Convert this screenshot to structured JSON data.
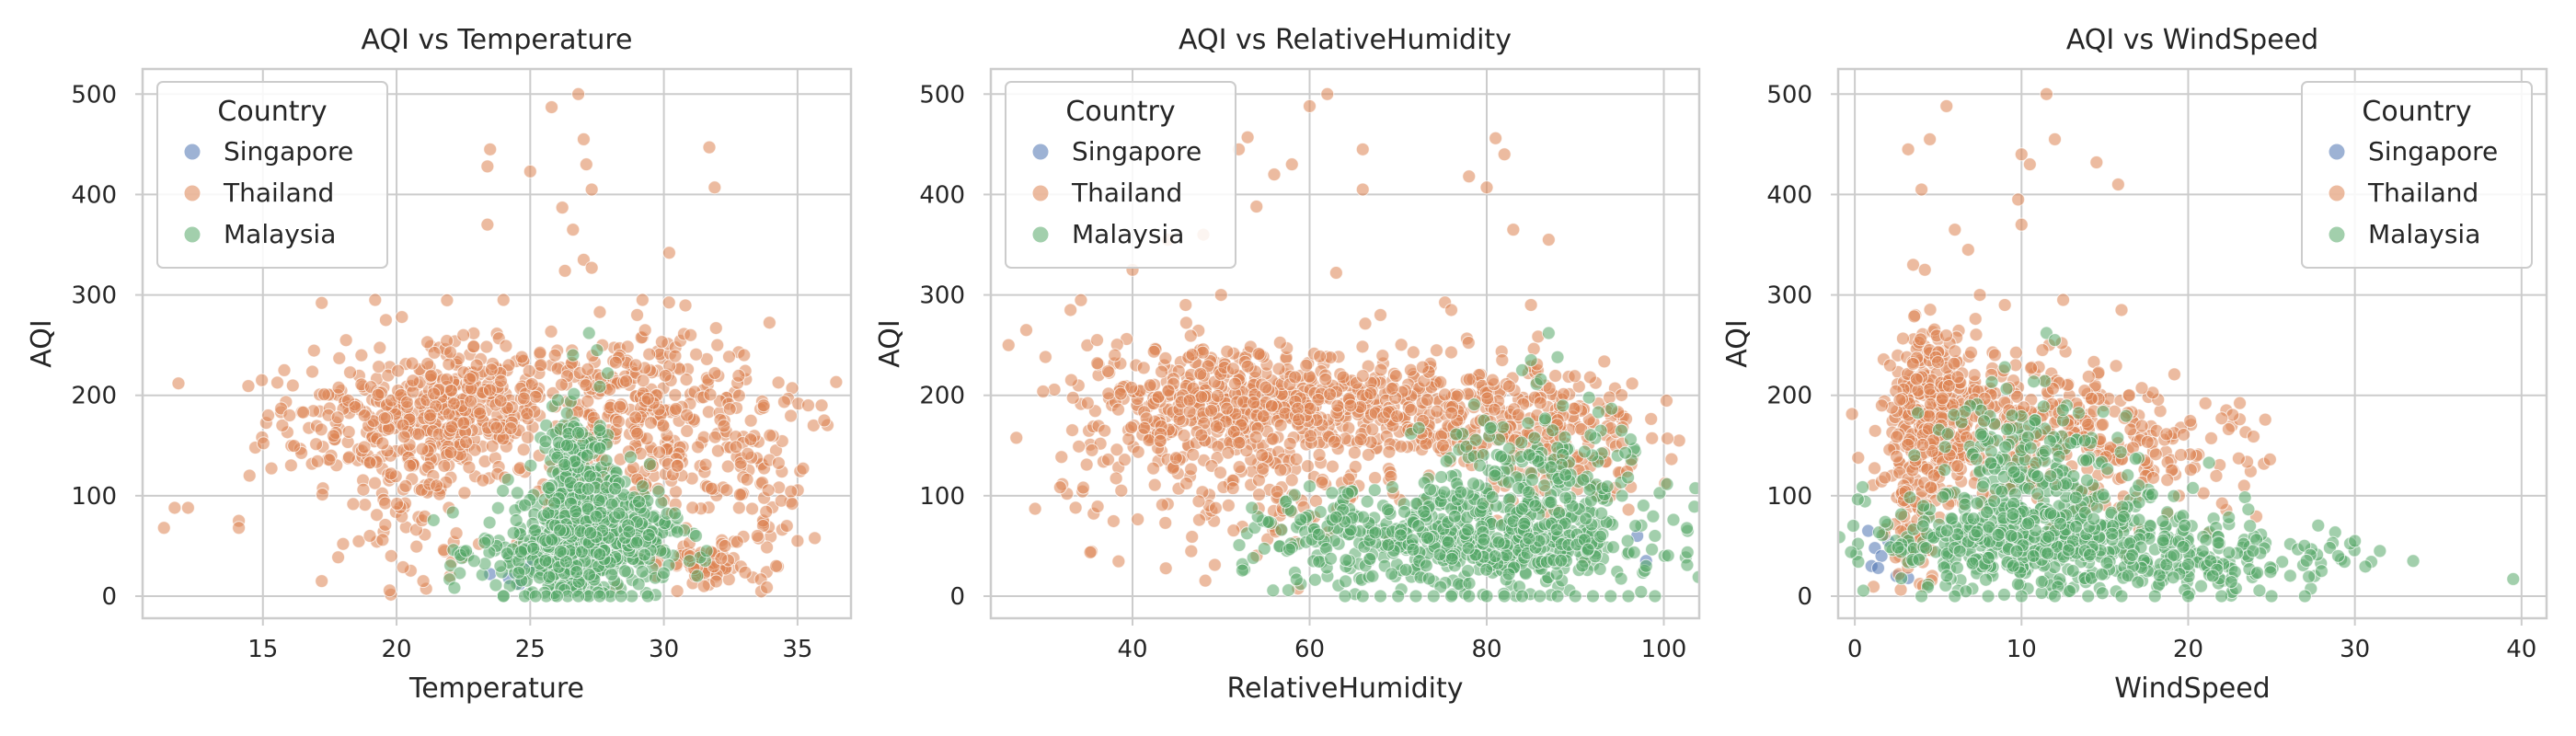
{
  "chart_data": [
    {
      "type": "scatter",
      "title": "AQI vs Temperature",
      "xlabel": "Temperature",
      "ylabel": "AQI",
      "xlim": [
        10.5,
        37
      ],
      "ylim": [
        -22,
        525
      ],
      "xticks": [
        15,
        20,
        25,
        30,
        35
      ],
      "yticks": [
        0,
        100,
        200,
        300,
        400,
        500
      ],
      "grid": true,
      "legend": {
        "title": "Country",
        "position": "upper-left",
        "entries": [
          "Singapore",
          "Thailand",
          "Malaysia"
        ]
      },
      "series": [
        {
          "name": "Singapore",
          "color": "#4c72b0",
          "points": [
            [
              23.5,
              22
            ],
            [
              24.2,
              18
            ],
            [
              25.0,
              30
            ],
            [
              24.6,
              12
            ]
          ]
        },
        {
          "name": "Thailand",
          "color": "#dd8452",
          "points": [
            [
              11.3,
              68
            ],
            [
              11.7,
              88
            ],
            [
              12.2,
              88
            ],
            [
              14.1,
              75
            ],
            [
              14.1,
              68
            ],
            [
              14.5,
              120
            ],
            [
              15.2,
              180
            ],
            [
              15.8,
              225
            ],
            [
              16.0,
              180
            ],
            [
              17.2,
              292
            ],
            [
              17.8,
              178
            ],
            [
              18.8,
              180
            ],
            [
              19.2,
              295
            ],
            [
              19.6,
              275
            ],
            [
              20.2,
              278
            ],
            [
              17.2,
              15
            ],
            [
              18.0,
              52
            ],
            [
              19.0,
              60
            ],
            [
              19.8,
              40
            ],
            [
              20.5,
              130
            ],
            [
              21.5,
              110
            ],
            [
              22.5,
              260
            ],
            [
              23.0,
              230
            ],
            [
              23.4,
              428
            ],
            [
              23.5,
              445
            ],
            [
              23.4,
              370
            ],
            [
              24.0,
              295
            ],
            [
              25.0,
              423
            ],
            [
              25.8,
              487
            ],
            [
              26.3,
              324
            ],
            [
              26.2,
              387
            ],
            [
              26.6,
              365
            ],
            [
              26.8,
              500
            ],
            [
              27.0,
              455
            ],
            [
              27.1,
              430
            ],
            [
              27.3,
              405
            ],
            [
              27.0,
              335
            ],
            [
              27.3,
              327
            ],
            [
              29.2,
              295
            ],
            [
              30.2,
              342
            ],
            [
              31.7,
              447
            ],
            [
              31.9,
              407
            ],
            [
              29.0,
              280
            ],
            [
              31.0,
              260
            ],
            [
              32.0,
              250
            ],
            [
              33.0,
              240
            ],
            [
              34.2,
              30
            ],
            [
              34.6,
              70
            ],
            [
              35.0,
              55
            ],
            [
              35.4,
              190
            ],
            [
              35.9,
              190
            ],
            [
              35.6,
              170
            ],
            [
              36.0,
              175
            ],
            [
              34.8,
              92
            ],
            [
              33.5,
              60
            ],
            [
              31.5,
              10
            ],
            [
              30.5,
              5
            ],
            [
              29.7,
              20
            ],
            [
              22.0,
              20
            ],
            [
              21.0,
              15
            ]
          ],
          "cloud": [
            {
              "cx": 19.5,
              "cy": 175,
              "sx": 2.2,
              "sy": 32,
              "n": 220
            },
            {
              "cx": 22.5,
              "cy": 180,
              "sx": 1.4,
              "sy": 35,
              "n": 200
            },
            {
              "cx": 29.5,
              "cy": 175,
              "sx": 2.2,
              "sy": 48,
              "n": 320
            },
            {
              "cx": 24.5,
              "cy": 205,
              "sx": 2.0,
              "sy": 25,
              "n": 90
            },
            {
              "cx": 31.5,
              "cy": 30,
              "sx": 0.8,
              "sy": 12,
              "n": 60
            },
            {
              "cx": 20.5,
              "cy": 90,
              "sx": 1.2,
              "sy": 40,
              "n": 60
            },
            {
              "cx": 33.5,
              "cy": 110,
              "sx": 1.0,
              "sy": 50,
              "n": 70
            }
          ]
        },
        {
          "name": "Malaysia",
          "color": "#55a868",
          "points": [
            [
              24.0,
              0
            ],
            [
              24.8,
              0
            ],
            [
              25.6,
              0
            ],
            [
              26.4,
              0
            ],
            [
              27.2,
              0
            ],
            [
              28.0,
              0
            ],
            [
              28.8,
              0
            ],
            [
              29.4,
              0
            ],
            [
              25.2,
              0
            ],
            [
              26.0,
              0
            ],
            [
              26.8,
              0
            ],
            [
              27.6,
              0
            ],
            [
              28.4,
              0
            ],
            [
              27.2,
              262
            ],
            [
              27.5,
              245
            ],
            [
              26.6,
              240
            ],
            [
              27.9,
              222
            ],
            [
              22.6,
              45
            ],
            [
              22.9,
              35
            ],
            [
              31.6,
              45
            ],
            [
              31.2,
              60
            ]
          ],
          "cloud": [
            {
              "cx": 26.8,
              "cy": 110,
              "sx": 0.7,
              "sy": 38,
              "n": 220
            },
            {
              "cx": 26.5,
              "cy": 45,
              "sx": 1.7,
              "sy": 24,
              "n": 380
            },
            {
              "cx": 28.2,
              "cy": 75,
              "sx": 1.3,
              "sy": 30,
              "n": 120
            }
          ]
        }
      ]
    },
    {
      "type": "scatter",
      "title": "AQI vs RelativeHumidity",
      "xlabel": "RelativeHumidity",
      "ylabel": "AQI",
      "xlim": [
        24,
        104
      ],
      "ylim": [
        -22,
        525
      ],
      "xticks": [
        40,
        60,
        80,
        100
      ],
      "yticks": [
        0,
        100,
        200,
        300,
        400,
        500
      ],
      "grid": true,
      "legend": {
        "title": "Country",
        "position": "upper-left",
        "entries": [
          "Singapore",
          "Thailand",
          "Malaysia"
        ]
      },
      "series": [
        {
          "name": "Singapore",
          "color": "#4c72b0",
          "points": [
            [
              97,
              60
            ],
            [
              98,
              35
            ]
          ]
        },
        {
          "name": "Thailand",
          "color": "#dd8452",
          "points": [
            [
              26,
              250
            ],
            [
              28,
              265
            ],
            [
              29,
              87
            ],
            [
              33,
              285
            ],
            [
              36,
              255
            ],
            [
              40,
              325
            ],
            [
              44,
              355
            ],
            [
              48,
              360
            ],
            [
              52,
              445
            ],
            [
              53,
              457
            ],
            [
              54,
              388
            ],
            [
              56,
              420
            ],
            [
              58,
              430
            ],
            [
              60,
              488
            ],
            [
              62,
              500
            ],
            [
              63,
              322
            ],
            [
              66,
              445
            ],
            [
              66,
              405
            ],
            [
              68,
              280
            ],
            [
              76,
              285
            ],
            [
              78,
              418
            ],
            [
              80,
              407
            ],
            [
              81,
              456
            ],
            [
              82,
              440
            ],
            [
              83,
              365
            ],
            [
              85,
              290
            ],
            [
              87,
              355
            ],
            [
              50,
              300
            ],
            [
              46,
              290
            ],
            [
              38,
              240
            ],
            [
              42,
              210
            ]
          ],
          "cloud": [
            {
              "cx": 52,
              "cy": 195,
              "sx": 9,
              "sy": 28,
              "n": 420
            },
            {
              "cx": 72,
              "cy": 185,
              "sx": 9,
              "sy": 30,
              "n": 320
            },
            {
              "cx": 88,
              "cy": 160,
              "sx": 5,
              "sy": 40,
              "n": 160
            },
            {
              "cx": 55,
              "cy": 110,
              "sx": 6,
              "sy": 40,
              "n": 120
            },
            {
              "cx": 42,
              "cy": 150,
              "sx": 5,
              "sy": 45,
              "n": 60
            }
          ]
        },
        {
          "name": "Malaysia",
          "color": "#55a868",
          "points": [
            [
              64,
              0
            ],
            [
              68,
              0
            ],
            [
              72,
              0
            ],
            [
              76,
              0
            ],
            [
              80,
              0
            ],
            [
              84,
              0
            ],
            [
              88,
              0
            ],
            [
              92,
              0
            ],
            [
              96,
              0
            ],
            [
              99,
              0
            ],
            [
              66,
              0
            ],
            [
              70,
              0
            ],
            [
              74,
              0
            ],
            [
              78,
              0
            ],
            [
              82,
              0
            ],
            [
              86,
              0
            ],
            [
              90,
              0
            ],
            [
              94,
              0
            ],
            [
              87,
              262
            ],
            [
              88,
              238
            ],
            [
              85,
              235
            ],
            [
              84,
              225
            ],
            [
              99,
              60
            ],
            [
              98,
              30
            ]
          ],
          "cloud": [
            {
              "cx": 80,
              "cy": 55,
              "sx": 10,
              "sy": 25,
              "n": 550
            },
            {
              "cx": 85,
              "cy": 120,
              "sx": 6,
              "sy": 35,
              "n": 160
            },
            {
              "cx": 62,
              "cy": 60,
              "sx": 4,
              "sy": 20,
              "n": 80
            }
          ]
        }
      ]
    },
    {
      "type": "scatter",
      "title": "AQI vs WindSpeed",
      "xlabel": "WindSpeed",
      "ylabel": "AQI",
      "xlim": [
        -1,
        41.5
      ],
      "ylim": [
        -22,
        525
      ],
      "xticks": [
        0,
        10,
        20,
        30,
        40
      ],
      "yticks": [
        0,
        100,
        200,
        300,
        400,
        500
      ],
      "grid": true,
      "legend": {
        "title": "Country",
        "position": "upper-right",
        "entries": [
          "Singapore",
          "Thailand",
          "Malaysia"
        ]
      },
      "series": [
        {
          "name": "Singapore",
          "color": "#4c72b0",
          "points": [
            [
              0.8,
              65
            ],
            [
              1.2,
              48
            ],
            [
              1.0,
              30
            ],
            [
              1.6,
              40
            ],
            [
              2.0,
              55
            ],
            [
              1.4,
              28
            ],
            [
              2.5,
              20
            ],
            [
              3.2,
              18
            ]
          ]
        },
        {
          "name": "Thailand",
          "color": "#dd8452",
          "points": [
            [
              3.2,
              445
            ],
            [
              4.5,
              455
            ],
            [
              5.5,
              488
            ],
            [
              4.0,
              405
            ],
            [
              3.5,
              330
            ],
            [
              4.2,
              325
            ],
            [
              6.0,
              365
            ],
            [
              6.8,
              345
            ],
            [
              10.0,
              440
            ],
            [
              10.5,
              430
            ],
            [
              9.8,
              395
            ],
            [
              10.0,
              370
            ],
            [
              11.5,
              500
            ],
            [
              12.0,
              455
            ],
            [
              14.5,
              432
            ],
            [
              15.8,
              410
            ],
            [
              16.0,
              285
            ],
            [
              12.5,
              295
            ],
            [
              7.5,
              300
            ],
            [
              9.0,
              290
            ]
          ],
          "cloud": [
            {
              "cx": 4.8,
              "cy": 190,
              "sx": 1.4,
              "sy": 38,
              "n": 280
            },
            {
              "cx": 9.5,
              "cy": 170,
              "sx": 4,
              "sy": 38,
              "n": 260
            },
            {
              "cx": 17.5,
              "cy": 140,
              "sx": 3.5,
              "sy": 30,
              "n": 120
            },
            {
              "cx": 3.5,
              "cy": 80,
              "sx": 1.0,
              "sy": 40,
              "n": 80
            }
          ]
        },
        {
          "name": "Malaysia",
          "color": "#55a868",
          "points": [
            [
              4,
              0
            ],
            [
              6,
              0
            ],
            [
              8,
              0
            ],
            [
              10,
              0
            ],
            [
              12,
              0
            ],
            [
              14,
              0
            ],
            [
              16,
              0
            ],
            [
              18,
              0
            ],
            [
              20,
              0
            ],
            [
              22,
              0
            ],
            [
              25,
              0
            ],
            [
              27,
              0
            ],
            [
              39.5,
              17
            ],
            [
              33.5,
              35
            ],
            [
              31.5,
              45
            ],
            [
              30,
              55
            ],
            [
              29,
              40
            ],
            [
              28,
              25
            ],
            [
              11.5,
              262
            ],
            [
              12,
              255
            ],
            [
              9,
              228
            ]
          ],
          "cloud": [
            {
              "cx": 11,
              "cy": 55,
              "sx": 5,
              "sy": 25,
              "n": 500
            },
            {
              "cx": 10.5,
              "cy": 130,
              "sx": 3,
              "sy": 35,
              "n": 170
            },
            {
              "cx": 22,
              "cy": 40,
              "sx": 4,
              "sy": 18,
              "n": 140
            }
          ]
        }
      ]
    }
  ]
}
